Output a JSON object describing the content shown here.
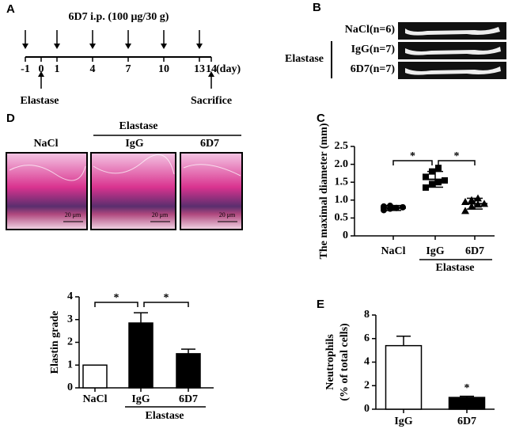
{
  "panels": [
    "A",
    "B",
    "C",
    "D",
    "E"
  ],
  "timeline": {
    "title": "6D7 i.p. (100 μg/30 g)",
    "days": [
      -1,
      0,
      1,
      4,
      7,
      10,
      13,
      14
    ],
    "unit": "(day)",
    "injection_days": [
      -1,
      1,
      4,
      7,
      10,
      13
    ],
    "elastase_day": 0,
    "sacrifice_day": 14,
    "start_label": "Elastase",
    "end_label": "Sacrifice"
  },
  "aorta": {
    "rows": [
      "NaCl(n=6)",
      "IgG(n=7)",
      "6D7(n=7)"
    ],
    "group": "Elastase"
  },
  "histology": {
    "group": "Elastase",
    "labels": [
      "NaCl",
      "IgG",
      "6D7"
    ],
    "scale": "20 μm"
  },
  "chart_data": [
    {
      "type": "scatter",
      "ylabel": "The maximal diameter (mm)",
      "categories": [
        "NaCl",
        "IgG",
        "6D7"
      ],
      "group": "Elastase",
      "markers": [
        "circle",
        "square",
        "triangle"
      ],
      "color": "#000000",
      "values": [
        0.78,
        1.58,
        0.9
      ],
      "errors": [
        0.07,
        0.22,
        0.15
      ],
      "points": [
        [
          0.72,
          0.76,
          0.78,
          0.8,
          0.82,
          0.84
        ],
        [
          1.35,
          1.45,
          1.5,
          1.55,
          1.65,
          1.8,
          1.9
        ],
        [
          0.7,
          0.82,
          0.88,
          0.9,
          0.95,
          1.0,
          1.05
        ]
      ],
      "ylim": [
        0,
        2.5
      ],
      "yticks": [
        0,
        0.5,
        {
          "value": 1,
          "label": "1.0"
        },
        1.5,
        {
          "value": 2,
          "label": "2.0"
        },
        2.5
      ],
      "brackets": [
        "*",
        "*"
      ]
    },
    {
      "type": "bar",
      "ylabel": "Elastin grade",
      "categories": [
        "NaCl",
        "IgG",
        "6D7"
      ],
      "group": "Elastase",
      "colors": [
        "#ffffff",
        "#000000",
        "#000000"
      ],
      "values": [
        1.0,
        2.85,
        1.5
      ],
      "errors": [
        0,
        0.45,
        0.2
      ],
      "ylim": [
        0,
        4
      ],
      "yticks": [
        0,
        1,
        2,
        3,
        4
      ],
      "brackets": [
        "*",
        "*"
      ]
    },
    {
      "type": "bar",
      "ylabel": [
        "Neutrophils",
        "(% of total cells)"
      ],
      "categories": [
        "IgG",
        "6D7"
      ],
      "colors": [
        "#ffffff",
        "#000000"
      ],
      "values": [
        5.4,
        1.0
      ],
      "errors": [
        0.8,
        0.1
      ],
      "ylim": [
        0,
        8
      ],
      "yticks": [
        0,
        2,
        4,
        6,
        8
      ],
      "star": "*"
    }
  ]
}
